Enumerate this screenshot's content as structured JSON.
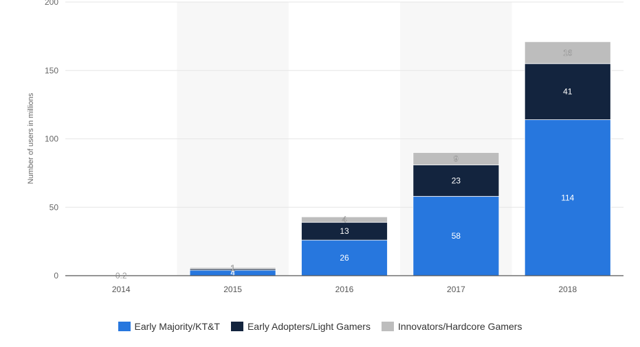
{
  "chart_data": {
    "type": "bar",
    "stacked": true,
    "categories": [
      "2014",
      "2015",
      "2016",
      "2017",
      "2018"
    ],
    "ylabel": "Number of users in millions",
    "ylim": [
      0,
      200
    ],
    "yticks": [
      0,
      50,
      100,
      150,
      200
    ],
    "grid": true,
    "legend_position": "bottom",
    "series": [
      {
        "name": "Early Majority/KT&T",
        "color": "#2777de",
        "values": [
          0.2,
          4,
          26,
          58,
          114
        ]
      },
      {
        "name": "Early Adopters/Light Gamers",
        "color": "#13243e",
        "values": [
          0.1,
          1,
          13,
          23,
          41
        ]
      },
      {
        "name": "Innovators/Hardcore Gamers",
        "color": "#bdbdbd",
        "values": [
          0.1,
          1,
          4,
          9,
          16
        ]
      }
    ],
    "data_labels": [
      [
        "0.2",
        "",
        ""
      ],
      [
        "4",
        "1",
        "1"
      ],
      [
        "26",
        "13",
        "4"
      ],
      [
        "58",
        "23",
        "9"
      ],
      [
        "114",
        "41",
        "16"
      ]
    ],
    "shaded_columns": [
      "2015",
      "2017"
    ]
  }
}
